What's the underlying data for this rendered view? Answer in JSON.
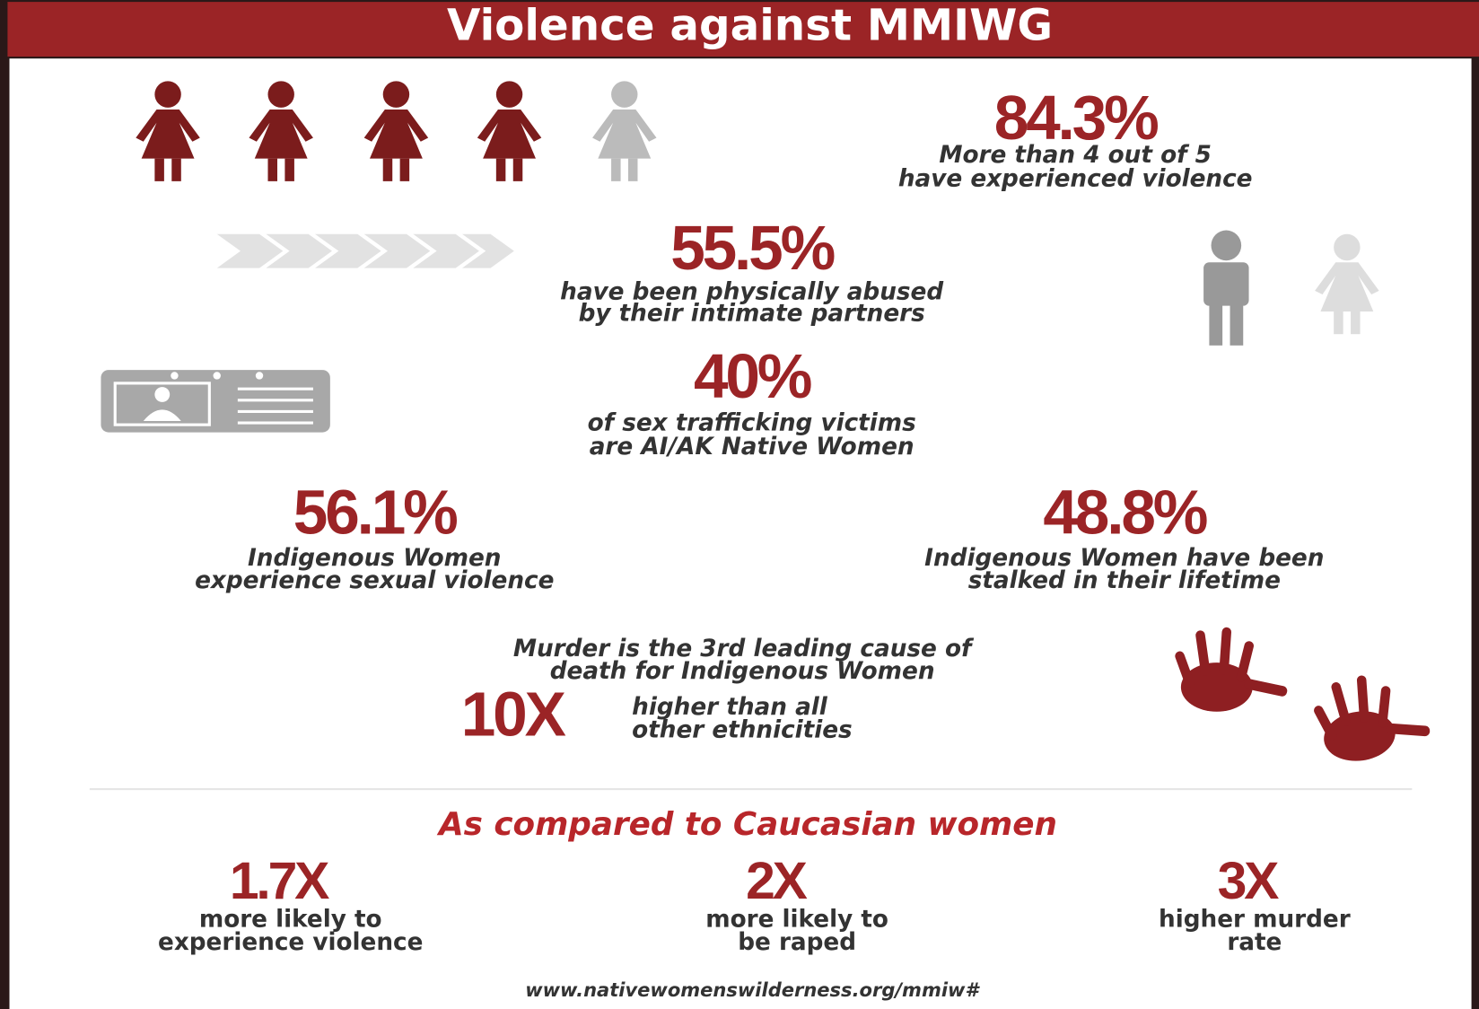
{
  "header": {
    "title": "Violence against MMIWG"
  },
  "stats": [
    {
      "value": "84.3%",
      "lines": [
        "More than 4 out of 5",
        "have experienced violence"
      ]
    },
    {
      "value": "55.5%",
      "lines": [
        "have been physically abused",
        "by their intimate partners"
      ]
    },
    {
      "value": "40%",
      "lines": [
        "of sex trafficking victims",
        "are AI/AK Native Women"
      ]
    },
    {
      "value": "56.1%",
      "lines": [
        "Indigenous Women",
        "experience sexual violence"
      ]
    },
    {
      "value": "48.8%",
      "lines": [
        "Indigenous Women have been",
        "stalked in their lifetime"
      ]
    }
  ],
  "murder": {
    "lines": [
      "Murder is the 3rd leading cause of",
      "death for Indigenous Women"
    ],
    "value": "10X",
    "note": [
      "higher than all",
      "other ethnicities"
    ]
  },
  "comparison": {
    "title": "As compared to Caucasian women",
    "items": [
      {
        "value": "1.7X",
        "lines": [
          "more likely to",
          "experience violence"
        ]
      },
      {
        "value": "2X",
        "lines": [
          "more likely to",
          "be raped"
        ]
      },
      {
        "value": "3X",
        "lines": [
          "higher murder",
          "rate"
        ]
      }
    ]
  },
  "footer": {
    "url": "www.nativewomenswilderness.org/mmiw#"
  }
}
